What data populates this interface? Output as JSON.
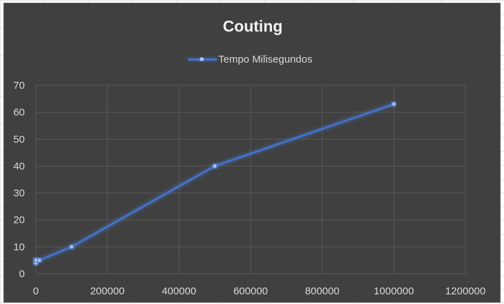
{
  "chart_data": {
    "type": "scatter",
    "title": "Couting",
    "xlabel": "",
    "ylabel": "",
    "legend": "top",
    "grid": true,
    "xlim": [
      0,
      1200000
    ],
    "ylim": [
      0,
      70
    ],
    "x_ticks": [
      "0",
      "200000",
      "400000",
      "600000",
      "800000",
      "1000000",
      "1200000"
    ],
    "y_ticks": [
      "0",
      "10",
      "20",
      "30",
      "40",
      "50",
      "60",
      "70"
    ],
    "series": [
      {
        "name": "Tempo Milisegundos",
        "color": "#4472c4",
        "x": [
          10,
          100,
          1000,
          10000,
          100000,
          500000,
          1000000
        ],
        "y": [
          5,
          4,
          5,
          5,
          10,
          40,
          63
        ]
      }
    ]
  }
}
